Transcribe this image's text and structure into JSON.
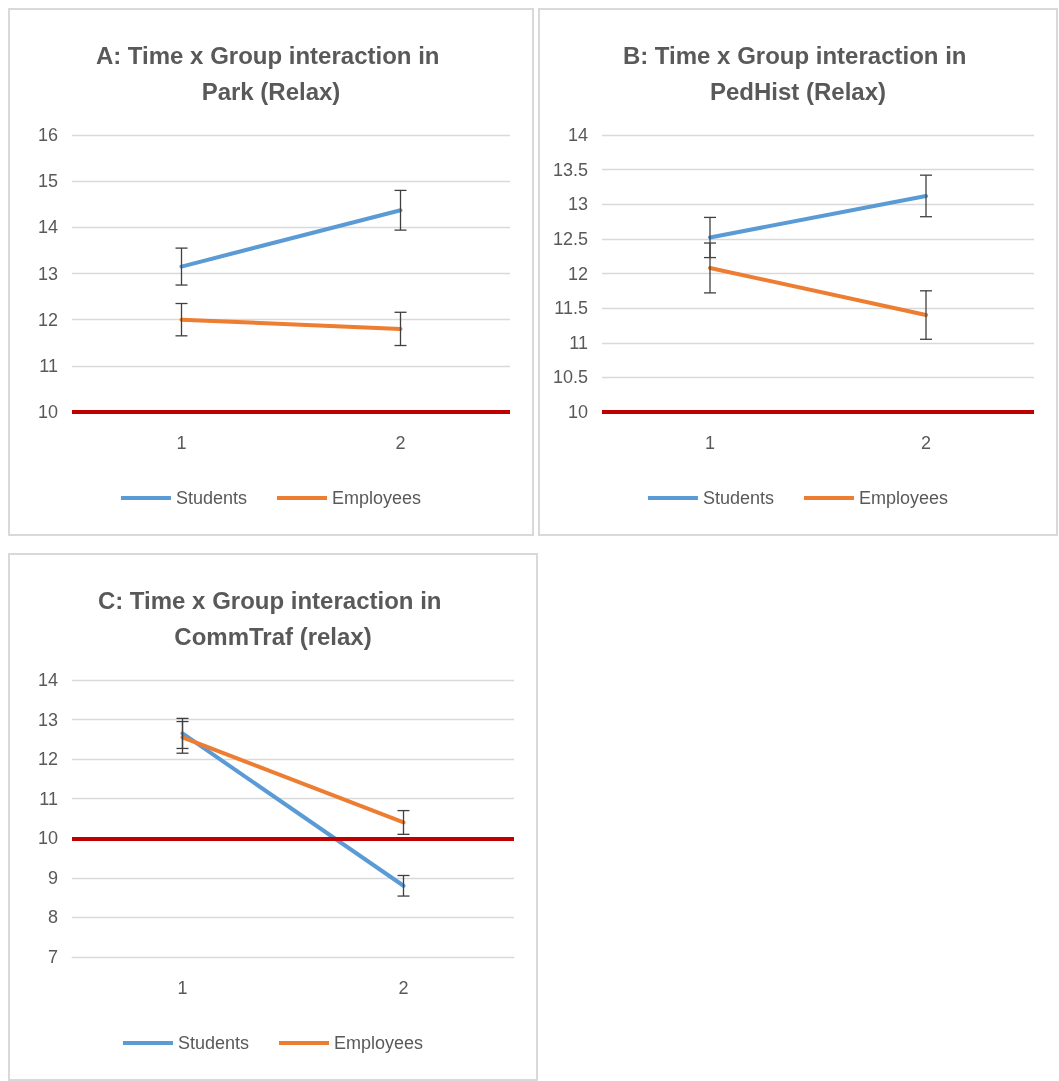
{
  "chart_data": [
    {
      "type": "line",
      "title": "A: Time x Group interaction in Park (Relax)",
      "categories": [
        "1",
        "2"
      ],
      "series": [
        {
          "name": "Students",
          "color": "#5b9bd5",
          "values": [
            13.15,
            14.37
          ],
          "errors": [
            0.4,
            0.43
          ]
        },
        {
          "name": "Employees",
          "color": "#ed7d31",
          "values": [
            12.0,
            11.8
          ],
          "errors": [
            0.35,
            0.36
          ]
        }
      ],
      "ylim": [
        10,
        16
      ],
      "yticks": [
        10,
        11,
        12,
        13,
        14,
        15,
        16
      ],
      "grid": "y",
      "legend": "bottom",
      "marker": "none",
      "ref_lines": [
        {
          "axis": "y",
          "value": 10,
          "color": "#c00000"
        }
      ]
    },
    {
      "type": "line",
      "title": "B: Time x Group interaction in PedHist (Relax)",
      "categories": [
        "1",
        "2"
      ],
      "series": [
        {
          "name": "Students",
          "color": "#5b9bd5",
          "values": [
            12.52,
            13.12
          ],
          "errors": [
            0.29,
            0.3
          ]
        },
        {
          "name": "Employees",
          "color": "#ed7d31",
          "values": [
            12.08,
            11.4
          ],
          "errors": [
            0.36,
            0.35
          ]
        }
      ],
      "ylim": [
        10,
        14
      ],
      "yticks": [
        10,
        10.5,
        11,
        11.5,
        12,
        12.5,
        13,
        13.5,
        14
      ],
      "grid": "y",
      "legend": "bottom",
      "marker": "none",
      "ref_lines": [
        {
          "axis": "y",
          "value": 10,
          "color": "#c00000"
        }
      ]
    },
    {
      "type": "line",
      "title": "C: Time x Group interaction in CommTraf (relax)",
      "categories": [
        "1",
        "2"
      ],
      "series": [
        {
          "name": "Students",
          "color": "#5b9bd5",
          "values": [
            12.65,
            8.8
          ],
          "errors": [
            0.38,
            0.26
          ]
        },
        {
          "name": "Employees",
          "color": "#ed7d31",
          "values": [
            12.55,
            10.4
          ],
          "errors": [
            0.4,
            0.3
          ]
        }
      ],
      "ylim": [
        7,
        14
      ],
      "yticks": [
        7,
        8,
        9,
        10,
        11,
        12,
        13,
        14
      ],
      "grid": "y",
      "legend": "bottom",
      "marker": "none",
      "ref_lines": [
        {
          "axis": "y",
          "value": 10,
          "color": "#c00000"
        }
      ]
    }
  ]
}
